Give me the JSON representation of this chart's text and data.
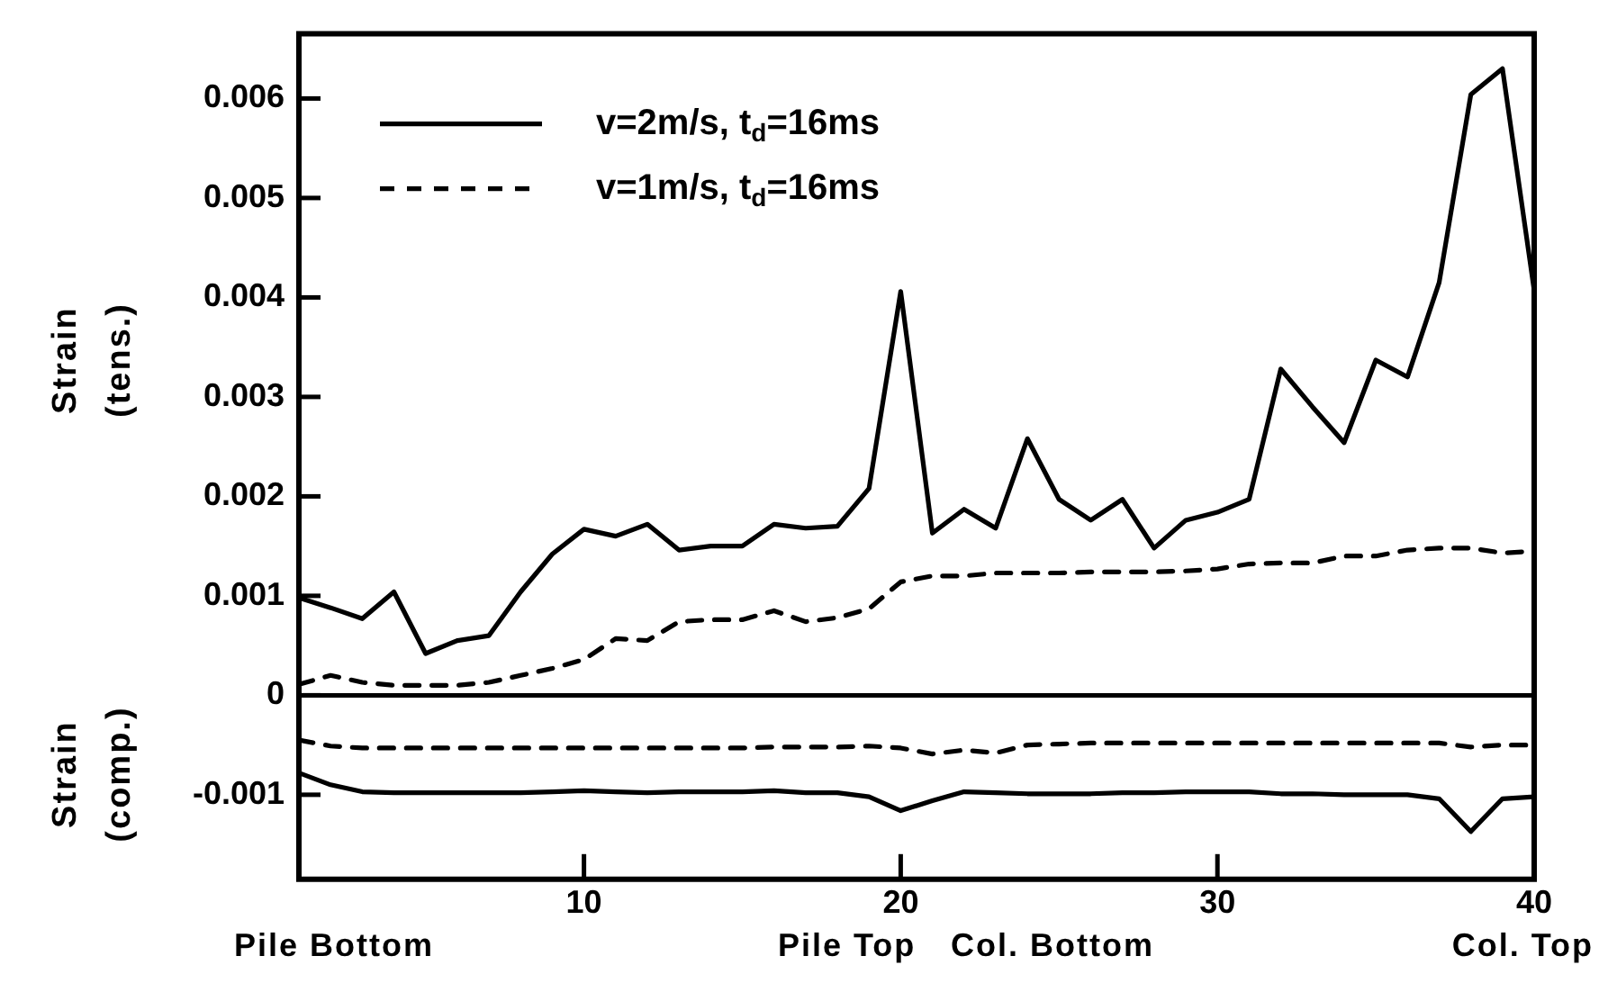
{
  "chart_data": {
    "type": "line",
    "ylabel": "Strain (tens.)",
    "xlim": [
      1,
      40
    ],
    "xticks": [
      10,
      20,
      30,
      40
    ],
    "ylim": [
      -0.00185,
      0.00665
    ],
    "yticks": [
      -0.001,
      0,
      0.001,
      0.002,
      0.003,
      0.004,
      0.005,
      0.006
    ],
    "grid": false,
    "legend": "top left",
    "marker": "none",
    "x": [
      1,
      2,
      3,
      4,
      5,
      6,
      7,
      8,
      9,
      10,
      11,
      12,
      13,
      14,
      15,
      16,
      17,
      18,
      19,
      20,
      21,
      22,
      23,
      24,
      25,
      26,
      27,
      28,
      29,
      30,
      31,
      32,
      33,
      34,
      35,
      36,
      37,
      38,
      39,
      40
    ],
    "series": [
      {
        "name": "v=2m/s, t$_{d}$=16ms",
        "color": "#000000",
        "line_style": "solid",
        "values": [
          0.00098,
          0.00088,
          0.00077,
          0.00104,
          0.00042,
          0.00055,
          0.0006,
          0.00104,
          0.00142,
          0.00167,
          0.0016,
          0.00172,
          0.00146,
          0.0015,
          0.0015,
          0.00172,
          0.00168,
          0.0017,
          0.00208,
          0.00406,
          0.00163,
          0.00187,
          0.00168,
          0.00258,
          0.00197,
          0.00176,
          0.00197,
          0.00148,
          0.00176,
          0.00184,
          0.00197,
          0.00328,
          0.0029,
          0.00254,
          0.00337,
          0.0032,
          0.00415,
          0.00604,
          0.0063,
          0.00407
        ]
      },
      {
        "name": "v=1m/s, t$_{d}$=16ms",
        "color": "#000000",
        "line_style": "dashed",
        "values": [
          0.00011,
          0.0002,
          0.00013,
          0.0001,
          0.0001,
          0.0001,
          0.00013,
          0.0002,
          0.00027,
          0.00036,
          0.00057,
          0.00055,
          0.00074,
          0.00076,
          0.00076,
          0.00085,
          0.00074,
          0.00078,
          0.00087,
          0.00114,
          0.0012,
          0.0012,
          0.00123,
          0.00123,
          0.00123,
          0.00124,
          0.00124,
          0.00124,
          0.00125,
          0.00127,
          0.00132,
          0.00133,
          0.00133,
          0.0014,
          0.0014,
          0.00146,
          0.00148,
          0.00148,
          0.00143,
          0.00145
        ]
      },
      {
        "color": "#000000",
        "line_style": "solid",
        "values": [
          -0.00078,
          -0.0009,
          -0.00097,
          -0.00098,
          -0.00098,
          -0.00098,
          -0.00098,
          -0.00098,
          -0.00097,
          -0.00096,
          -0.00097,
          -0.00098,
          -0.00097,
          -0.00097,
          -0.00097,
          -0.00096,
          -0.00098,
          -0.00098,
          -0.00102,
          -0.00116,
          -0.00106,
          -0.00097,
          -0.00098,
          -0.00099,
          -0.00099,
          -0.00099,
          -0.00098,
          -0.00098,
          -0.00097,
          -0.00097,
          -0.00097,
          -0.00099,
          -0.00099,
          -0.001,
          -0.001,
          -0.001,
          -0.00104,
          -0.00137,
          -0.00104,
          -0.00102
        ]
      },
      {
        "color": "#000000",
        "line_style": "dashed",
        "values": [
          -0.00045,
          -0.00051,
          -0.00053,
          -0.00053,
          -0.00053,
          -0.00053,
          -0.00053,
          -0.00053,
          -0.00053,
          -0.00053,
          -0.00053,
          -0.00053,
          -0.00053,
          -0.00053,
          -0.00053,
          -0.00052,
          -0.00052,
          -0.00052,
          -0.00051,
          -0.00053,
          -0.00059,
          -0.00055,
          -0.00058,
          -0.0005,
          -0.00049,
          -0.00048,
          -0.00048,
          -0.00048,
          -0.00048,
          -0.00048,
          -0.00048,
          -0.00048,
          -0.00048,
          -0.00048,
          -0.00048,
          -0.00048,
          -0.00048,
          -0.00052,
          -0.0005,
          -0.0005
        ]
      }
    ],
    "ref_lines": [
      {
        "axis": "y",
        "value": 0,
        "color": "#000000",
        "line_style": "solid"
      }
    ],
    "annotations": [
      "Strain (comp.)",
      "Pile Bottom",
      "Pile Top",
      "Col. Bottom",
      "Col. Top"
    ]
  }
}
